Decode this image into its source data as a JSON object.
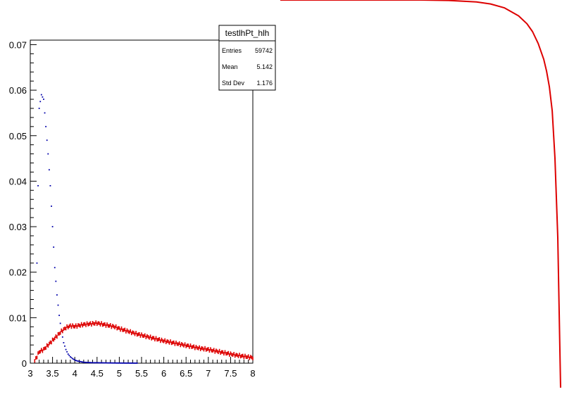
{
  "chart_data": [
    {
      "type": "scatter",
      "title": "",
      "xlabel": "",
      "ylabel": "",
      "xlim": [
        3,
        8
      ],
      "ylim": [
        0,
        0.071
      ],
      "x_ticks": [
        "3",
        "3.5",
        "4",
        "4.5",
        "5",
        "5.5",
        "6",
        "6.5",
        "7",
        "7.5",
        "8"
      ],
      "y_ticks": [
        "0",
        "0.01",
        "0.02",
        "0.03",
        "0.04",
        "0.05",
        "0.06",
        "0.07"
      ],
      "grid": false,
      "stats_box": {
        "title": "testlhPt_hlh",
        "rows": [
          {
            "label": "Entries",
            "value": "59742"
          },
          {
            "label": "Mean",
            "value": "5.142"
          },
          {
            "label": "Std Dev",
            "value": "1.176"
          }
        ]
      },
      "series": [
        {
          "color": "#0000aa",
          "x": [
            3.15,
            3.2,
            3.25,
            3.3,
            3.35,
            3.4,
            3.45,
            3.5,
            3.55,
            3.6,
            3.65,
            3.7,
            3.75,
            3.8,
            3.85,
            3.9,
            3.95,
            4.0,
            4.05,
            4.1,
            4.15,
            4.2,
            4.3,
            4.4,
            4.5,
            4.6,
            4.7,
            4.8,
            5.0,
            5.2,
            5.4
          ],
          "y": [
            0.022,
            0.056,
            0.059,
            0.058,
            0.052,
            0.046,
            0.039,
            0.03,
            0.021,
            0.015,
            0.0105,
            0.007,
            0.0045,
            0.003,
            0.002,
            0.0014,
            0.001,
            0.0007,
            0.0005,
            0.0004,
            0.0003,
            0.0002,
            0.00015,
            0.0001,
            0.0001,
            8e-05,
            6e-05,
            5e-05,
            3e-05,
            2e-05,
            1e-05
          ]
        },
        {
          "color": "#dd0000",
          "x": [
            3.1,
            3.2,
            3.3,
            3.4,
            3.5,
            3.6,
            3.7,
            3.8,
            3.9,
            4.0,
            4.1,
            4.2,
            4.3,
            4.4,
            4.5,
            4.6,
            4.7,
            4.8,
            4.9,
            5.0,
            5.2,
            5.4,
            5.6,
            5.8,
            6.0,
            6.2,
            6.4,
            6.6,
            6.8,
            7.0,
            7.2,
            7.4,
            7.6,
            7.8,
            8.0
          ],
          "y": [
            0.0005,
            0.0025,
            0.003,
            0.004,
            0.005,
            0.006,
            0.007,
            0.0078,
            0.0082,
            0.0081,
            0.0083,
            0.0085,
            0.0086,
            0.0087,
            0.0088,
            0.0086,
            0.0084,
            0.0082,
            0.008,
            0.0076,
            0.007,
            0.0064,
            0.0059,
            0.0054,
            0.0049,
            0.0045,
            0.0041,
            0.0037,
            0.0033,
            0.003,
            0.0026,
            0.0022,
            0.0018,
            0.0015,
            0.0012
          ]
        }
      ]
    },
    {
      "type": "line",
      "title": "",
      "xlabel": "",
      "ylabel": "",
      "series": [
        {
          "color": "#dd0000",
          "x": [
            0,
            0.5,
            0.6,
            0.7,
            0.75,
            0.8,
            0.85,
            0.88,
            0.9,
            0.92,
            0.94,
            0.95,
            0.96,
            0.97,
            0.98,
            0.99,
            1.0
          ],
          "y": [
            1.0,
            1.0,
            0.999,
            0.995,
            0.99,
            0.98,
            0.96,
            0.94,
            0.92,
            0.89,
            0.85,
            0.82,
            0.78,
            0.72,
            0.6,
            0.4,
            0.02
          ]
        }
      ]
    }
  ]
}
